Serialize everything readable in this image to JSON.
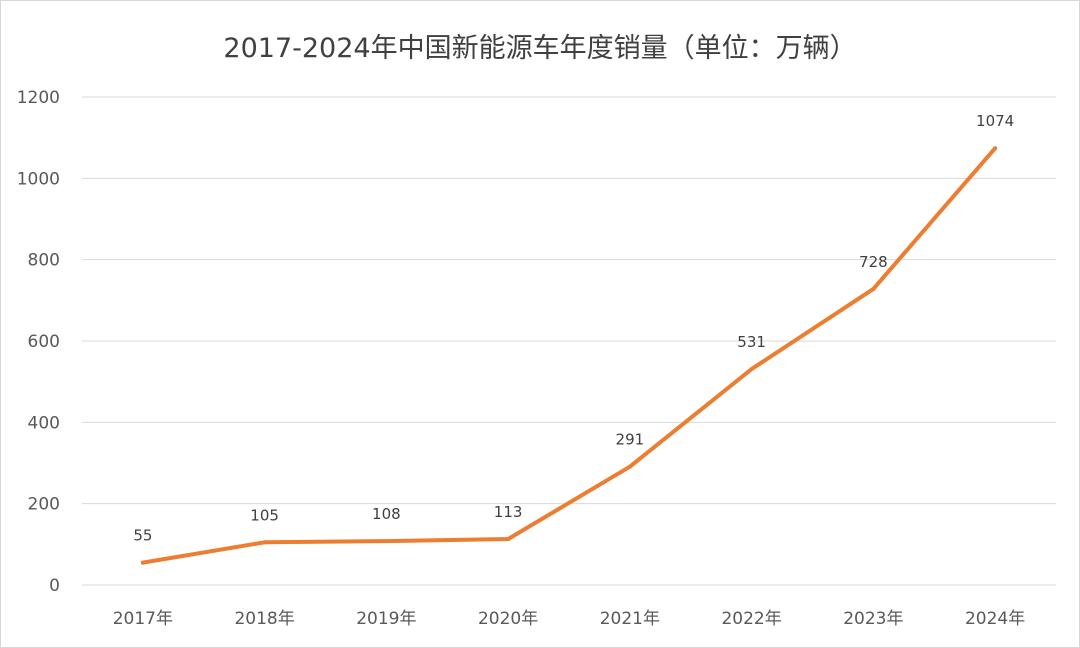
{
  "chart_data": {
    "type": "line",
    "title": "2017-2024年中国新能源车年度销量（单位：万辆）",
    "categories": [
      "2017年",
      "2018年",
      "2019年",
      "2020年",
      "2021年",
      "2022年",
      "2023年",
      "2024年"
    ],
    "series": [
      {
        "values": [
          55,
          105,
          108,
          113,
          291,
          531,
          728,
          1074
        ],
        "color": "#ED7D31"
      }
    ],
    "yticks": [
      "0",
      "200",
      "400",
      "600",
      "800",
      "1000",
      "1200"
    ],
    "ylim": [
      0,
      1200
    ],
    "grid": true,
    "data_labels": [
      "55",
      "105",
      "108",
      "113",
      "291",
      "531",
      "728",
      "1074"
    ]
  }
}
